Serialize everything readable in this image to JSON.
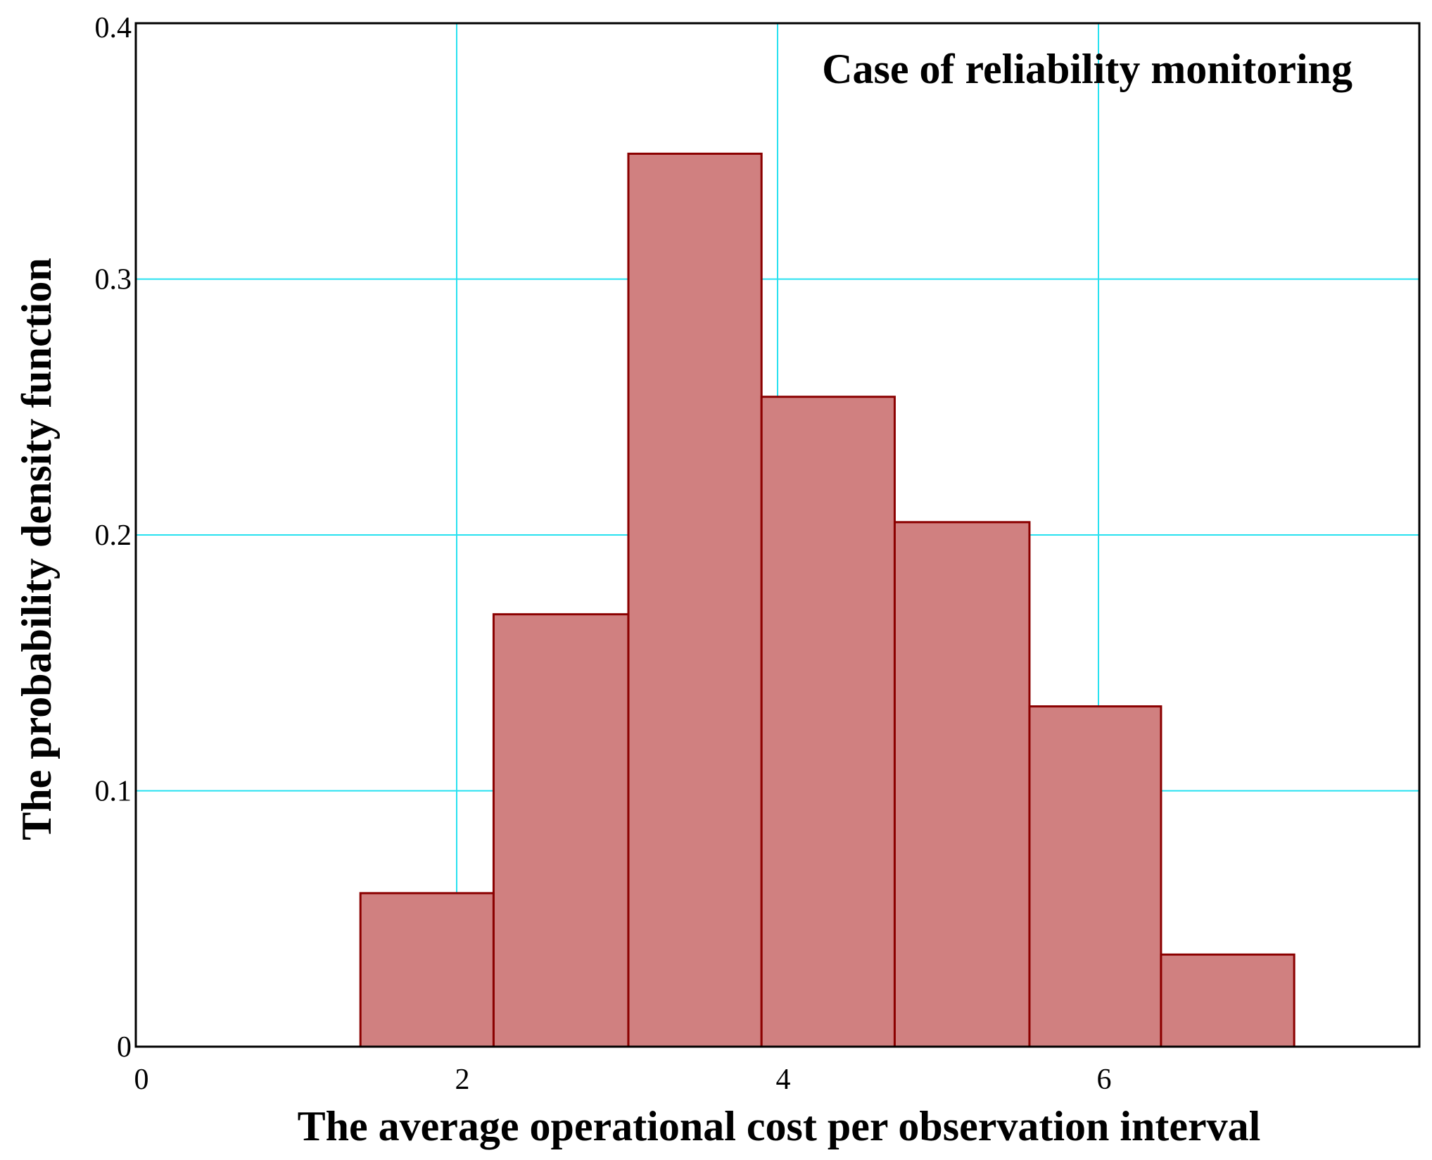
{
  "chart_data": {
    "type": "bar",
    "subtype": "histogram",
    "title": "Case of reliability monitoring",
    "xlabel": "The average operational cost per observation interval",
    "ylabel": "The probability density function",
    "xlim": [
      0,
      8
    ],
    "ylim": [
      0,
      0.4
    ],
    "xticks": [
      0,
      2,
      4,
      6
    ],
    "xtick_labels": [
      "0",
      "2",
      "4",
      "6"
    ],
    "yticks": [
      0,
      0.1,
      0.2,
      0.3,
      0.4
    ],
    "ytick_labels": [
      "0",
      "0.1",
      "0.2",
      "0.3",
      "0.4"
    ],
    "grid": true,
    "legend": null,
    "bin_edges": [
      1.4,
      2.23,
      3.07,
      3.9,
      4.73,
      5.57,
      6.39,
      7.22
    ],
    "values": [
      0.06,
      0.169,
      0.349,
      0.254,
      0.205,
      0.133,
      0.036
    ],
    "colors": {
      "bar_fill": "#d08080",
      "bar_edge": "#8b0000",
      "grid": "#27e1f0",
      "frame": "#000000"
    }
  }
}
